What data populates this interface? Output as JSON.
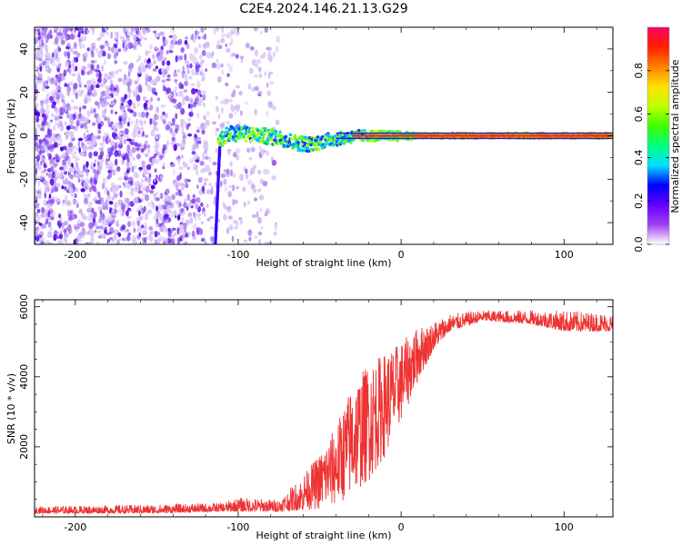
{
  "title": "C2E4.2024.146.21.13.G29",
  "chart_data": [
    {
      "type": "heatmap",
      "name": "spectrogram",
      "xlabel": "Height of straight line (km)",
      "ylabel": "Frequency (Hz)",
      "xlim": [
        -225,
        130
      ],
      "ylim": [
        -50,
        50
      ],
      "xticks": [
        -200,
        -100,
        0,
        100
      ],
      "yticks": [
        -40,
        -20,
        0,
        20,
        40
      ],
      "colorbar": {
        "label": "Normalized spectral amplitude",
        "range": [
          0,
          1
        ],
        "ticks": [
          0.0,
          0.2,
          0.4,
          0.6,
          0.8
        ],
        "colors": [
          "#ffffff",
          "#a040f0",
          "#6000ff",
          "#0000ff",
          "#00e0ff",
          "#00ff80",
          "#40ff00",
          "#c0ff00",
          "#ffe000",
          "#ff8000",
          "#ff2000",
          "#ff0060"
        ]
      },
      "signal_track": {
        "description_free": true,
        "x": [
          -112,
          -105,
          -95,
          -85,
          -75,
          -65,
          -55,
          -45,
          -35,
          -25,
          -15,
          -5,
          0,
          10,
          130
        ],
        "y": [
          -2,
          1,
          1,
          0,
          -1,
          -3,
          -4,
          -2,
          -1,
          0,
          0,
          0,
          0,
          0,
          0
        ]
      }
    },
    {
      "type": "line",
      "name": "snr",
      "xlabel": "Height of straight line (km)",
      "ylabel": "SNR (10 * v/v)",
      "xlim": [
        -225,
        130
      ],
      "ylim": [
        0,
        6200
      ],
      "xticks": [
        -200,
        -100,
        0,
        100
      ],
      "yticks": [
        2000,
        4000,
        6000
      ],
      "color": "#ee3333",
      "envelope": {
        "x": [
          -225,
          -150,
          -110,
          -100,
          -75,
          -60,
          -50,
          -40,
          -30,
          -20,
          -10,
          0,
          10,
          20,
          30,
          50,
          80,
          100,
          130
        ],
        "lo": [
          100,
          100,
          150,
          150,
          150,
          200,
          200,
          300,
          600,
          1000,
          1700,
          2700,
          3800,
          4800,
          5300,
          5600,
          5500,
          5300,
          5300
        ],
        "hi": [
          300,
          350,
          400,
          550,
          500,
          1200,
          1800,
          2600,
          3800,
          4400,
          4700,
          5000,
          5400,
          5600,
          5800,
          5900,
          5900,
          5900,
          5800
        ]
      }
    }
  ]
}
